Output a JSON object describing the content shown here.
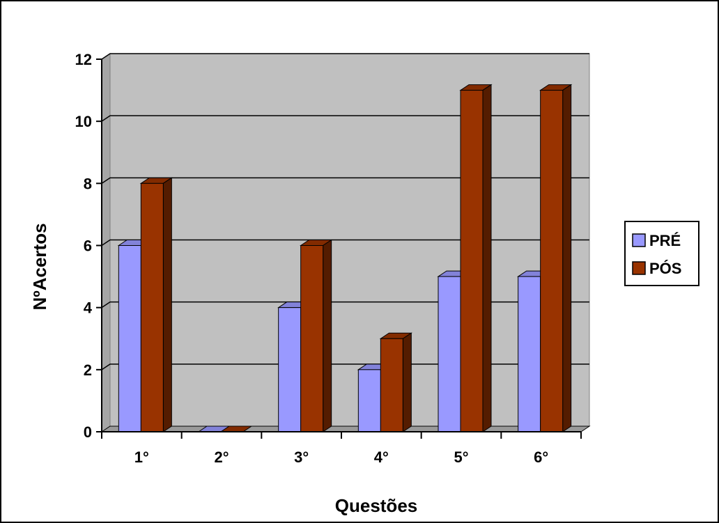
{
  "chart_data": {
    "type": "bar",
    "categories": [
      "1°",
      "2°",
      "3°",
      "4°",
      "5°",
      "6°"
    ],
    "series": [
      {
        "name": "PRÉ",
        "values": [
          6,
          0,
          4,
          2,
          5,
          5
        ],
        "color": "#9999ff"
      },
      {
        "name": "PÓS",
        "values": [
          8,
          0,
          6,
          3,
          11,
          11
        ],
        "color": "#993300"
      }
    ],
    "xlabel": "Questões",
    "ylabel": "NºAcertos",
    "ylim": [
      0,
      12
    ],
    "yticks": [
      0,
      2,
      4,
      6,
      8,
      10,
      12
    ],
    "grid": true,
    "legend": "right",
    "plot_background": "#c0c0c0"
  }
}
